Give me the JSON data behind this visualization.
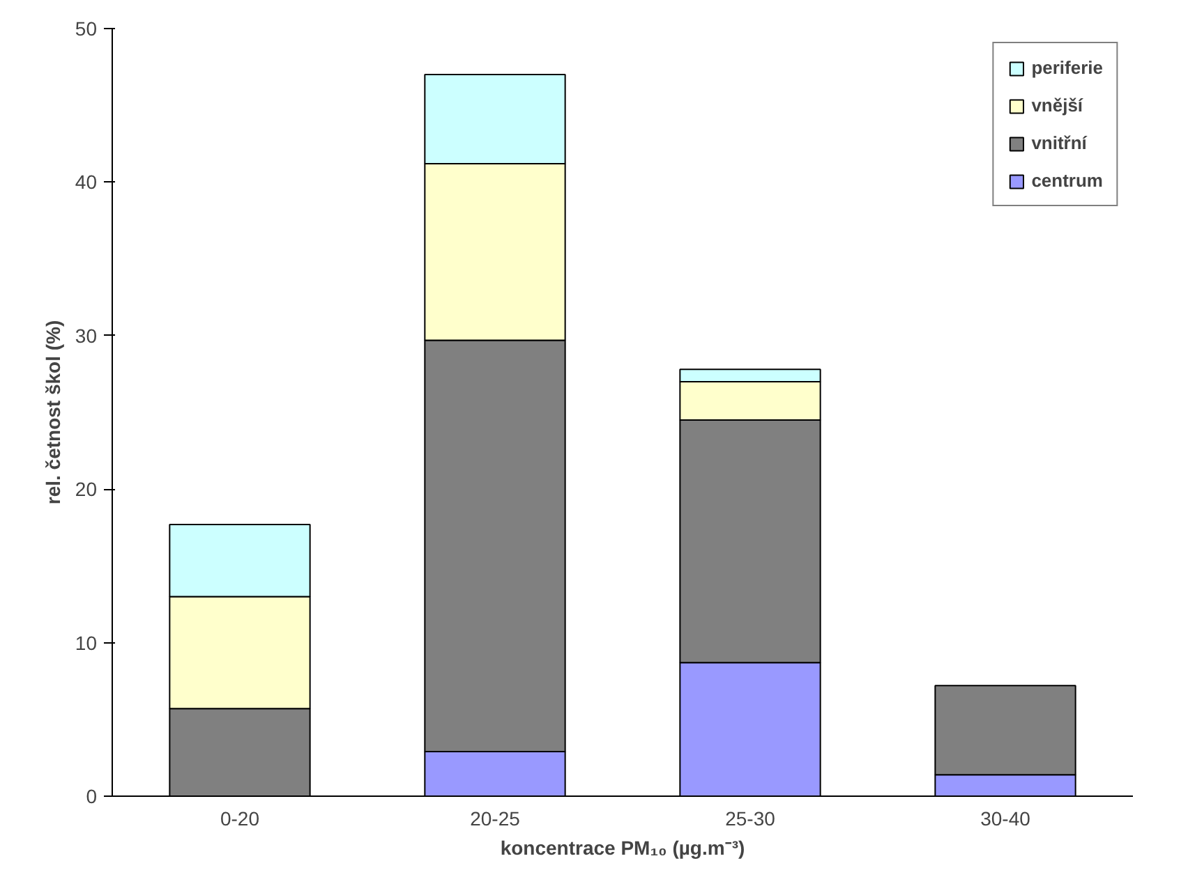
{
  "chart_data": {
    "type": "bar",
    "stacked": true,
    "xlabel": "koncentrace PM₁₀ (µg.m⁻³)",
    "ylabel": "rel. četnost škol (%)",
    "categories": [
      "0-20",
      "20-25",
      "25-30",
      "30-40"
    ],
    "series": [
      {
        "name": "centrum",
        "color": "#9999ff",
        "values": [
          0,
          2.9,
          8.7,
          1.4
        ]
      },
      {
        "name": "vnitřní",
        "color": "#808080",
        "values": [
          5.7,
          26.8,
          15.8,
          5.8
        ]
      },
      {
        "name": "vnější",
        "color": "#ffffcc",
        "values": [
          7.3,
          11.5,
          2.5,
          0
        ]
      },
      {
        "name": "periferie",
        "color": "#ccffff",
        "values": [
          4.7,
          5.8,
          0.8,
          0
        ]
      }
    ],
    "ylim": [
      0,
      50
    ],
    "yticks": [
      0,
      10,
      20,
      30,
      40,
      50
    ],
    "grid": false,
    "legend": "top right"
  }
}
